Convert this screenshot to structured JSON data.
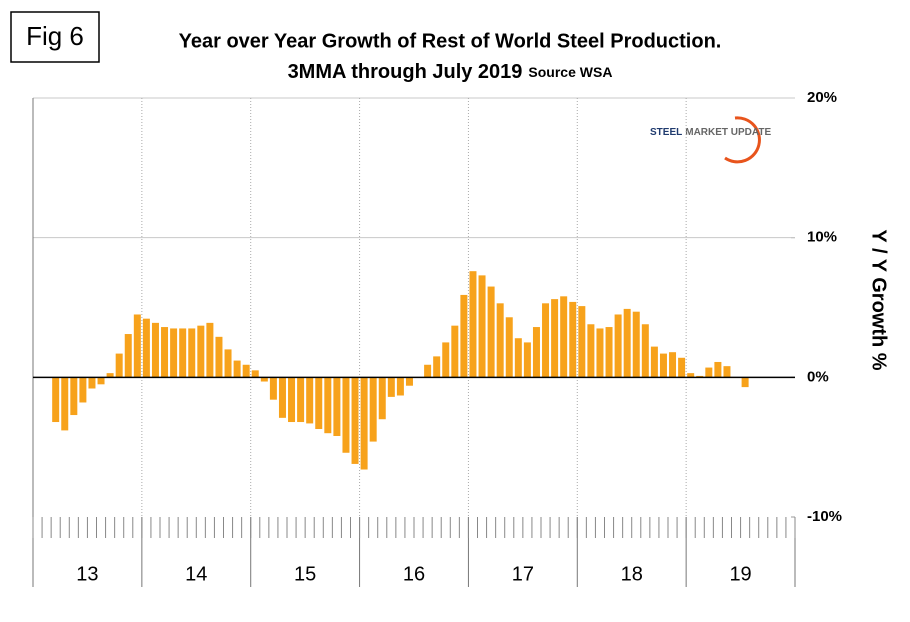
{
  "chart_data": {
    "type": "bar",
    "figure_label": "Fig 6",
    "title": "Year over Year Growth of Rest of World Steel Production.",
    "subtitle": "3MMA through July 2019",
    "source": "Source WSA",
    "logo": {
      "primary": "STEEL",
      "secondary": "MARKET UPDATE"
    },
    "y_axis_label": "Y / Y Growth %",
    "color": "#f7a21b",
    "ylim": [
      -10,
      20
    ],
    "yticks": [
      {
        "value": -10,
        "label": "-10%"
      },
      {
        "value": 0,
        "label": "0%"
      },
      {
        "value": 10,
        "label": "10%"
      },
      {
        "value": 20,
        "label": "20%"
      }
    ],
    "grid": true,
    "year_labels": [
      "13",
      "14",
      "15",
      "16",
      "17",
      "18",
      "19"
    ],
    "months_per_year": 12,
    "categories": [
      null,
      null,
      null,
      null,
      null,
      null,
      null,
      null,
      null,
      null,
      null,
      null,
      null,
      null,
      null,
      null,
      null,
      null,
      null,
      null,
      null,
      null,
      null,
      null,
      null,
      null,
      null,
      null,
      null,
      null,
      null,
      null,
      null,
      null,
      null,
      null,
      null,
      null,
      null,
      null,
      null,
      null,
      null,
      null,
      null,
      null,
      null,
      null,
      null,
      null,
      null,
      null,
      null,
      null,
      null,
      null,
      null,
      null,
      null,
      null,
      null,
      null,
      null,
      null,
      null,
      null,
      null,
      null,
      null,
      null,
      null,
      null,
      null,
      null,
      null,
      null,
      null,
      null,
      null,
      null,
      null,
      null,
      null,
      null
    ],
    "values": [
      null,
      null,
      -3.2,
      -3.8,
      -2.7,
      -1.8,
      -0.8,
      -0.5,
      0.3,
      1.7,
      3.1,
      4.5,
      4.2,
      3.9,
      3.6,
      3.5,
      3.5,
      3.5,
      3.7,
      3.9,
      2.9,
      2.0,
      1.2,
      0.9,
      0.5,
      -0.3,
      -1.6,
      -2.9,
      -3.2,
      -3.2,
      -3.3,
      -3.7,
      -4.0,
      -4.2,
      -5.4,
      -6.2,
      -6.6,
      -4.6,
      -3.0,
      -1.4,
      -1.3,
      -0.6,
      0,
      0.9,
      1.5,
      2.5,
      3.7,
      5.9,
      7.6,
      7.3,
      6.5,
      5.3,
      4.3,
      2.8,
      2.5,
      3.6,
      5.3,
      5.6,
      5.8,
      5.4,
      5.1,
      3.8,
      3.5,
      3.6,
      4.5,
      4.9,
      4.7,
      3.8,
      2.2,
      1.7,
      1.8,
      1.4,
      0.3,
      0.1,
      0.7,
      1.1,
      0.8,
      0,
      -0.7,
      null,
      null,
      null,
      null,
      null
    ]
  }
}
